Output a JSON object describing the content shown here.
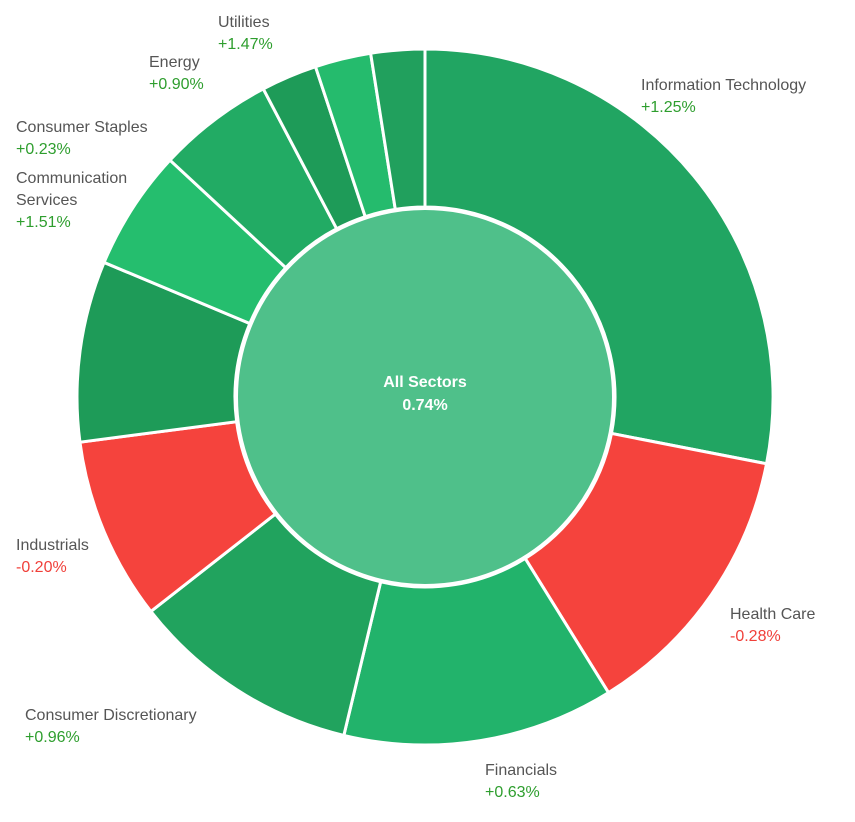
{
  "chart_data": {
    "type": "sunburst",
    "title": "",
    "center": {
      "label": "All Sectors",
      "change": "0.74%",
      "color": "#4fc08a"
    },
    "unit_weight": "percent of total",
    "segments": [
      {
        "name": "Information Technology",
        "change": "+1.25%",
        "weight": 28.1,
        "color": "#21a562"
      },
      {
        "name": "Health Care",
        "change": "-0.28%",
        "weight": 13.1,
        "color": "#f5433d"
      },
      {
        "name": "Financials",
        "change": "+0.63%",
        "weight": 12.6,
        "color": "#22b36b"
      },
      {
        "name": "Consumer Discretionary",
        "change": "+0.96%",
        "weight": 10.7,
        "color": "#21a35e"
      },
      {
        "name": "Industrials",
        "change": "-0.20%",
        "weight": 8.5,
        "color": "#f5433d"
      },
      {
        "name": "Communication Services",
        "change": "+1.51%",
        "weight": 8.4,
        "color": "#1e9b58"
      },
      {
        "name": "Consumer Staples",
        "change": "+0.23%",
        "weight": 5.6,
        "color": "#25be6e"
      },
      {
        "name": "Energy",
        "change": "+0.90%",
        "weight": 5.4,
        "color": "#22ab64"
      },
      {
        "name": "Utilities",
        "change": "+1.47%",
        "weight": 2.6,
        "color": "#1e9b58"
      },
      {
        "name": null,
        "change": null,
        "weight": 2.6,
        "color": "#25bb6d"
      },
      {
        "name": null,
        "change": null,
        "weight": 2.5,
        "color": "#21a05d"
      }
    ]
  }
}
